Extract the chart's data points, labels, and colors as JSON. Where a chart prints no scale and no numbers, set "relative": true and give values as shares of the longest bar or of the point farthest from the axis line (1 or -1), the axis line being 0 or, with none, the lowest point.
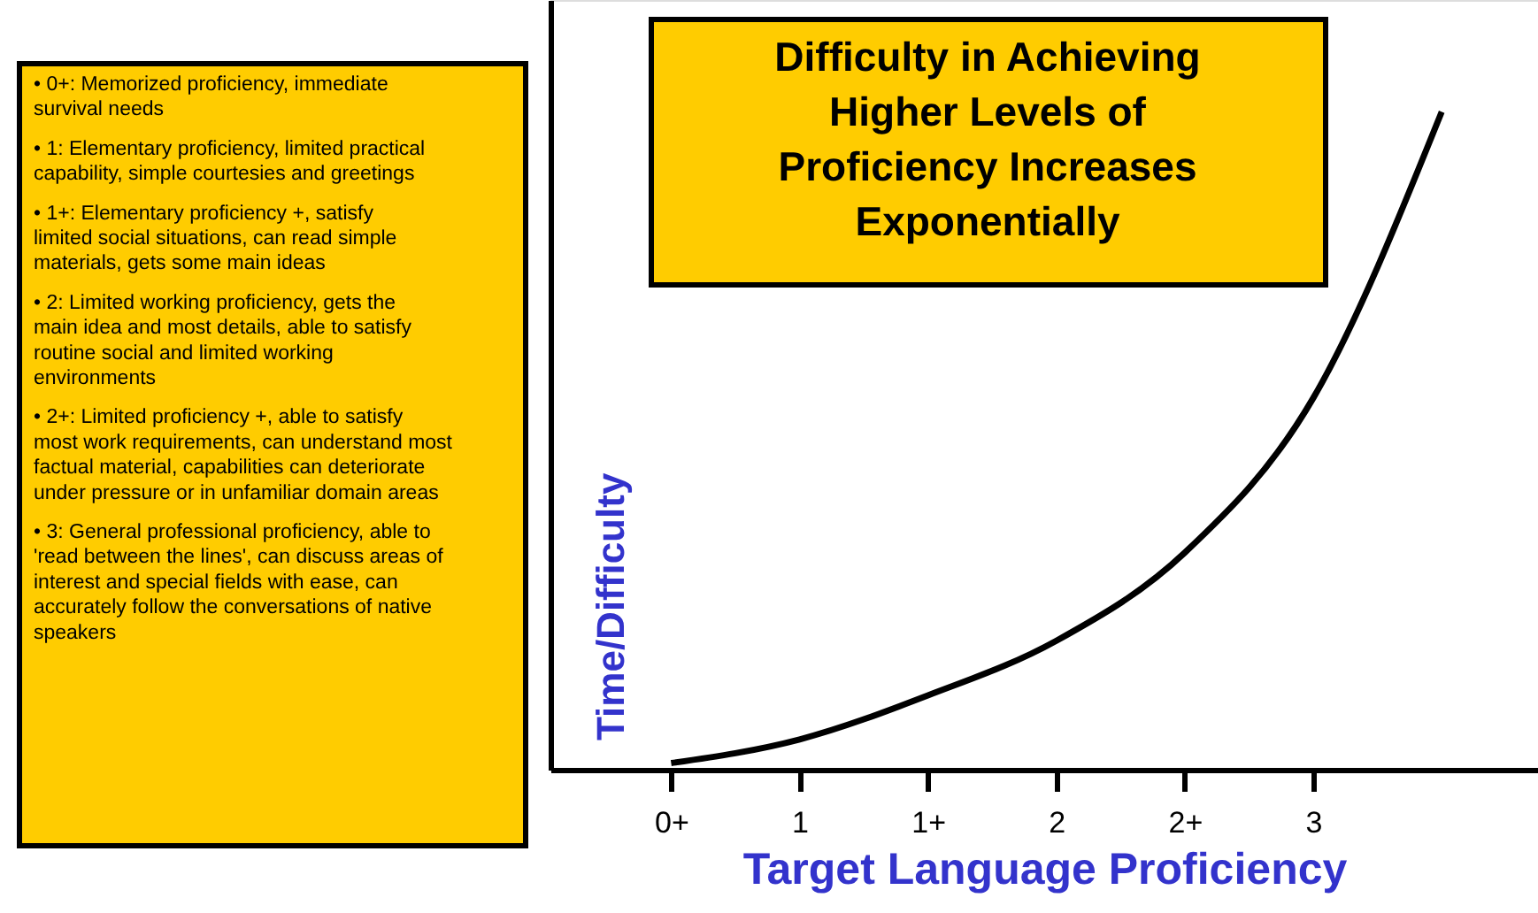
{
  "chart_data": {
    "type": "line",
    "title": "Difficulty in Achieving Higher Levels of Proficiency Increases Exponentially",
    "xlabel": "Target Language Proficiency",
    "ylabel": "Time/Difficulty",
    "relative": true,
    "grid": false,
    "categories": [
      "0+",
      "1",
      "1+",
      "2",
      "2+",
      "3",
      null
    ],
    "series": [
      {
        "color": "#000000",
        "values": [
          0.01,
          0.046,
          0.113,
          0.196,
          0.33,
          0.565,
          1.0
        ]
      }
    ],
    "annotations": [
      "• 0+: Memorized proficiency, immediate survival needs",
      "• 1: Elementary proficiency, limited practical capability, simple courtesies and greetings",
      "• 1+: Elementary proficiency +, satisfy limited social situations, can read simple materials, gets some main ideas",
      "• 2: Limited working proficiency, gets the main idea and most details, able to satisfy routine social and limited working environments",
      "• 2+: Limited proficiency +, able to satisfy most work requirements, can understand most factual material, capabilities can deteriorate under pressure or in unfamiliar domain areas",
      "• 3: General professional proficiency, able to 'read between the lines', can discuss areas of interest and special fields with ease, can accurately follow the conversations of native speakers"
    ]
  }
}
